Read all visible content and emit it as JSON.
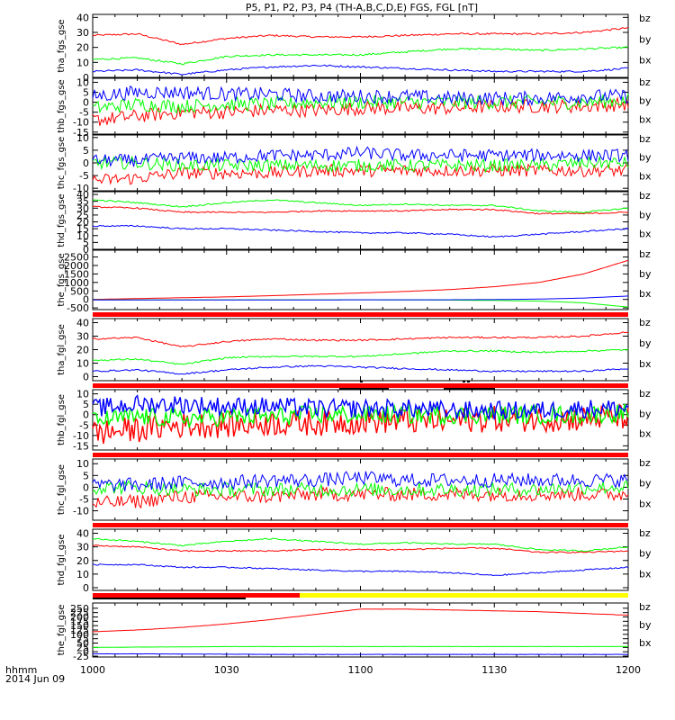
{
  "title": "P5, P1, P2, P3, P4 (TH-A,B,C,D,E) FGS, FGL [nT]",
  "time_axis": {
    "unit_label": "hhmm",
    "date_label": "2014 Jun 09",
    "ticks": [
      "1000",
      "1030",
      "1100",
      "1130",
      "1200"
    ]
  },
  "colors": {
    "bx": "#0000ff",
    "by": "#00ff00",
    "bz": "#ff0000",
    "status_red": "#ff0000",
    "status_yellow": "#ffff00",
    "status_black": "#000000"
  },
  "chart_data": [
    {
      "type": "line",
      "ylabel": "tha_fgs_gse",
      "ylim": [
        0,
        42
      ],
      "yticks": [
        0,
        10,
        20,
        30,
        40
      ],
      "x": [
        "10:00",
        "10:10",
        "10:20",
        "10:30",
        "10:40",
        "10:50",
        "11:00",
        "11:10",
        "11:20",
        "11:30",
        "11:40",
        "11:50",
        "12:00"
      ],
      "series": [
        {
          "name": "bz",
          "values": [
            28,
            29,
            22,
            26,
            28,
            27,
            27,
            28,
            29,
            29,
            29,
            30,
            33
          ]
        },
        {
          "name": "by",
          "values": [
            12,
            13,
            9,
            14,
            15,
            15,
            15,
            17,
            19,
            19,
            18,
            19,
            20
          ]
        },
        {
          "name": "bx",
          "values": [
            4,
            5,
            2,
            5,
            7,
            8,
            7,
            6,
            5,
            4,
            4,
            4,
            6
          ]
        }
      ]
    },
    {
      "type": "line",
      "ylabel": "thb_fgs_gse",
      "ylim": [
        -16,
        12
      ],
      "yticks": [
        -15,
        -10,
        -5,
        0,
        5,
        10
      ],
      "x": [
        "10:00",
        "10:10",
        "10:20",
        "10:30",
        "10:40",
        "10:50",
        "11:00",
        "11:10",
        "11:20",
        "11:30",
        "11:40",
        "11:50",
        "12:00"
      ],
      "series": [
        {
          "name": "bz",
          "values": [
            -9,
            -7,
            -5,
            -5,
            -4,
            -4,
            -3,
            -3,
            -3,
            -2,
            -2,
            -2,
            -1
          ]
        },
        {
          "name": "by",
          "values": [
            -3,
            -1,
            -2,
            -1,
            -1,
            0,
            0,
            0,
            0,
            0,
            0,
            0,
            1
          ]
        },
        {
          "name": "bx",
          "values": [
            3,
            5,
            5,
            4,
            4,
            3,
            3,
            3,
            2,
            2,
            2,
            3,
            3
          ]
        }
      ]
    },
    {
      "type": "line",
      "ylabel": "thc_fgs_gse",
      "ylim": [
        -11,
        11
      ],
      "yticks": [
        -10,
        -5,
        0,
        5,
        10
      ],
      "x": [
        "10:00",
        "10:10",
        "10:20",
        "10:30",
        "10:40",
        "10:50",
        "11:00",
        "11:10",
        "11:20",
        "11:30",
        "11:40",
        "11:50",
        "12:00"
      ],
      "series": [
        {
          "name": "bz",
          "values": [
            -7,
            -6,
            -4,
            -4,
            -4,
            -3,
            -3,
            -3,
            -3,
            -3,
            -3,
            -3,
            -3
          ]
        },
        {
          "name": "by",
          "values": [
            0,
            0,
            -1,
            -1,
            -1,
            -1,
            -1,
            -1,
            -1,
            -1,
            -1,
            0,
            0
          ]
        },
        {
          "name": "bx",
          "values": [
            1,
            1,
            2,
            2,
            3,
            3,
            4,
            3,
            3,
            3,
            3,
            3,
            3
          ]
        }
      ]
    },
    {
      "type": "line",
      "ylabel": "thd_fgs_gse",
      "ylim": [
        0,
        42
      ],
      "yticks": [
        0,
        5,
        10,
        15,
        20,
        25,
        30,
        35,
        40
      ],
      "x": [
        "10:00",
        "10:10",
        "10:20",
        "10:30",
        "10:40",
        "10:50",
        "11:00",
        "11:10",
        "11:20",
        "11:30",
        "11:40",
        "11:50",
        "12:00"
      ],
      "series": [
        {
          "name": "bz",
          "values": [
            31,
            30,
            27,
            27,
            27,
            28,
            28,
            28,
            29,
            29,
            26,
            26,
            27
          ]
        },
        {
          "name": "by",
          "values": [
            36,
            34,
            31,
            34,
            36,
            34,
            32,
            33,
            32,
            32,
            28,
            27,
            30
          ]
        },
        {
          "name": "bx",
          "values": [
            17,
            17,
            15,
            15,
            14,
            13,
            12,
            12,
            11,
            9,
            11,
            13,
            15
          ]
        }
      ]
    },
    {
      "type": "line",
      "ylabel": "the_fgs_gse",
      "ylim": [
        -600,
        2900
      ],
      "yticks": [
        -500,
        0,
        500,
        1000,
        1500,
        2000,
        2500
      ],
      "x": [
        "10:00",
        "10:10",
        "10:20",
        "10:30",
        "10:40",
        "10:50",
        "11:00",
        "11:10",
        "11:20",
        "11:30",
        "11:40",
        "11:50",
        "12:00"
      ],
      "series": [
        {
          "name": "bz",
          "values": [
            0,
            50,
            100,
            150,
            220,
            300,
            380,
            470,
            580,
            750,
            1000,
            1500,
            2300
          ]
        },
        {
          "name": "by",
          "values": [
            -20,
            -20,
            -20,
            -20,
            -20,
            -20,
            -20,
            -30,
            -40,
            -60,
            -100,
            -200,
            -450
          ]
        },
        {
          "name": "bx",
          "values": [
            -30,
            -30,
            -30,
            -30,
            -30,
            -30,
            -20,
            -20,
            -20,
            -10,
            20,
            80,
            200
          ]
        }
      ]
    },
    {
      "type": "line",
      "ylabel": "tha_fgl_gse",
      "ylim": [
        -3,
        43
      ],
      "yticks": [
        0,
        10,
        20,
        30,
        40
      ],
      "x": [
        "10:00",
        "10:10",
        "10:20",
        "10:30",
        "10:40",
        "10:50",
        "11:00",
        "11:10",
        "11:20",
        "11:30",
        "11:40",
        "11:50",
        "12:00"
      ],
      "series": [
        {
          "name": "bz",
          "values": [
            28,
            29,
            22,
            26,
            28,
            27,
            27,
            28,
            29,
            29,
            29,
            30,
            33
          ]
        },
        {
          "name": "by",
          "values": [
            12,
            13,
            9,
            14,
            15,
            15,
            15,
            17,
            19,
            19,
            18,
            19,
            20
          ]
        },
        {
          "name": "bx",
          "values": [
            4,
            5,
            2,
            5,
            7,
            8,
            7,
            6,
            5,
            4,
            4,
            4,
            6
          ]
        }
      ]
    },
    {
      "type": "line",
      "ylabel": "thb_fgl_gse",
      "ylim": [
        -17,
        12
      ],
      "yticks": [
        -15,
        -10,
        -5,
        0,
        5,
        10
      ],
      "x": [
        "10:00",
        "10:10",
        "10:20",
        "10:30",
        "10:40",
        "10:50",
        "11:00",
        "11:10",
        "11:20",
        "11:30",
        "11:40",
        "11:50",
        "12:00"
      ],
      "series": [
        {
          "name": "bz",
          "values": [
            -9,
            -7,
            -5,
            -5,
            -4,
            -4,
            -3,
            -3,
            -3,
            -2,
            -2,
            -2,
            -1
          ]
        },
        {
          "name": "by",
          "values": [
            -3,
            -1,
            -2,
            -1,
            -1,
            0,
            0,
            0,
            0,
            0,
            0,
            0,
            1
          ]
        },
        {
          "name": "bx",
          "values": [
            3,
            5,
            5,
            4,
            4,
            3,
            3,
            3,
            2,
            2,
            2,
            3,
            3
          ]
        }
      ]
    },
    {
      "type": "line",
      "ylabel": "thc_fgl_gse",
      "ylim": [
        -14,
        12
      ],
      "yticks": [
        -10,
        -5,
        0,
        5,
        10
      ],
      "x": [
        "10:00",
        "10:10",
        "10:20",
        "10:30",
        "10:40",
        "10:50",
        "11:00",
        "11:10",
        "11:20",
        "11:30",
        "11:40",
        "11:50",
        "12:00"
      ],
      "series": [
        {
          "name": "bz",
          "values": [
            -7,
            -6,
            -4,
            -4,
            -4,
            -3,
            -3,
            -3,
            -3,
            -3,
            -3,
            -3,
            -3
          ]
        },
        {
          "name": "by",
          "values": [
            0,
            0,
            -1,
            -1,
            -1,
            -1,
            -1,
            -1,
            -1,
            -1,
            -1,
            0,
            0
          ]
        },
        {
          "name": "bx",
          "values": [
            1,
            1,
            2,
            2,
            3,
            3,
            4,
            3,
            3,
            3,
            3,
            3,
            3
          ]
        }
      ]
    },
    {
      "type": "line",
      "ylabel": "thd_fgl_gse",
      "ylim": [
        -2,
        43
      ],
      "yticks": [
        0,
        10,
        20,
        30,
        40
      ],
      "x": [
        "10:00",
        "10:10",
        "10:20",
        "10:30",
        "10:40",
        "10:50",
        "11:00",
        "11:10",
        "11:20",
        "11:30",
        "11:40",
        "11:50",
        "12:00"
      ],
      "series": [
        {
          "name": "bz",
          "values": [
            31,
            30,
            27,
            27,
            27,
            28,
            28,
            28,
            29,
            29,
            26,
            26,
            27
          ]
        },
        {
          "name": "by",
          "values": [
            36,
            34,
            31,
            34,
            36,
            34,
            32,
            33,
            32,
            32,
            28,
            27,
            30
          ]
        },
        {
          "name": "bx",
          "values": [
            17,
            17,
            15,
            15,
            14,
            13,
            12,
            12,
            11,
            9,
            11,
            13,
            15
          ]
        }
      ]
    },
    {
      "type": "line",
      "ylabel": "the_fgl_gse",
      "ylim": [
        -30,
        280
      ],
      "yticks": [
        -25,
        0,
        25,
        50,
        75,
        100,
        125,
        150,
        175,
        200,
        225,
        250
      ],
      "x": [
        "10:00",
        "10:10",
        "10:20",
        "10:30",
        "10:40",
        "10:50",
        "11:00",
        "11:10",
        "11:20",
        "11:30",
        "11:40",
        "11:50",
        "12:00"
      ],
      "series": [
        {
          "name": "bz",
          "values": [
            115,
            125,
            140,
            160,
            185,
            215,
            245,
            245,
            240,
            235,
            230,
            220,
            210
          ]
        },
        {
          "name": "by",
          "values": [
            25,
            27,
            28,
            30,
            30,
            30,
            30,
            30,
            30,
            30,
            30,
            30,
            30
          ]
        },
        {
          "name": "bx",
          "values": [
            -12,
            -12,
            -13,
            -14,
            -15,
            -15,
            -15,
            -15,
            -15,
            -15,
            -15,
            -15,
            -15
          ]
        }
      ]
    }
  ]
}
